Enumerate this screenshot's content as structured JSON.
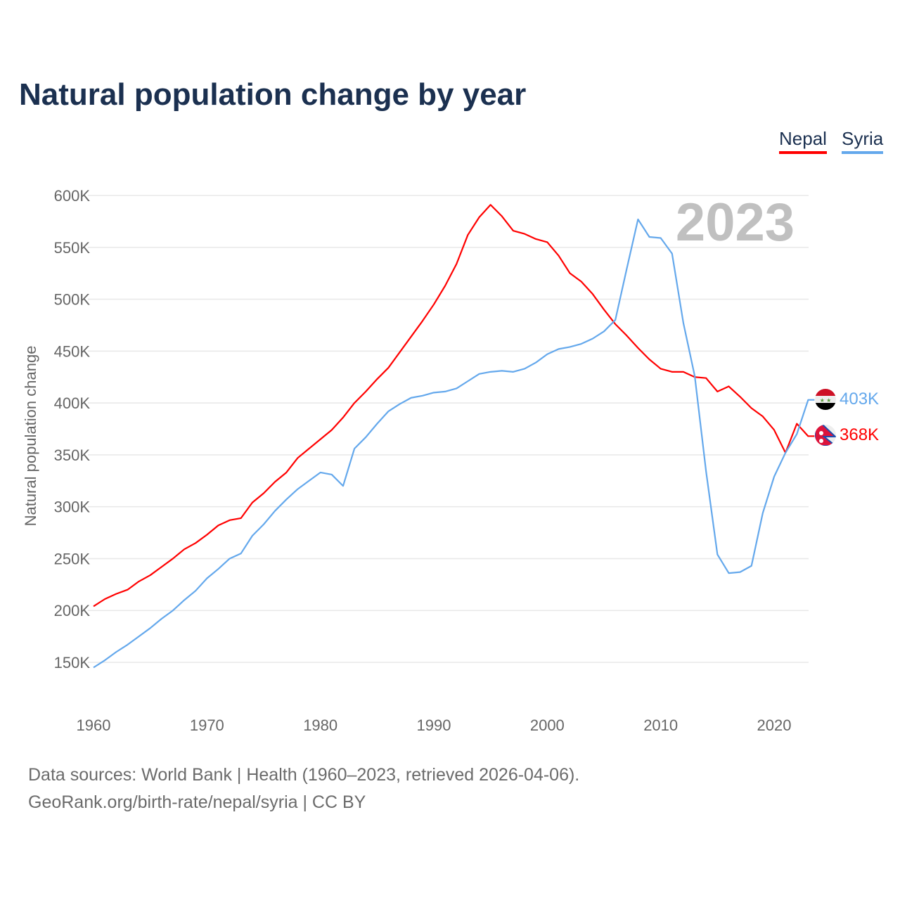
{
  "title": "Natural population change by year",
  "legend": [
    {
      "label": "Nepal",
      "color": "#ff0000"
    },
    {
      "label": "Syria",
      "color": "#64a8ec"
    }
  ],
  "year_watermark": "2023",
  "end_labels": {
    "nepal": "368K",
    "syria": "403K"
  },
  "flags": {
    "nepal": "nepal-flag-icon",
    "syria": "syria-flag-icon"
  },
  "source_lines": [
    "Data sources: World Bank | Health (1960–2023, retrieved 2026-04-06).",
    "GeoRank.org/birth-rate/nepal/syria | CC BY"
  ],
  "chart_data": {
    "type": "line",
    "title": "Natural population change by year",
    "xlabel": "",
    "ylabel": "Natural population change",
    "xlim": [
      1960,
      2023
    ],
    "ylim": [
      150000,
      600000
    ],
    "x_ticks": [
      1960,
      1970,
      1980,
      1990,
      2000,
      2010,
      2020
    ],
    "y_ticks": [
      150000,
      200000,
      250000,
      300000,
      350000,
      400000,
      450000,
      500000,
      550000,
      600000
    ],
    "y_tick_labels": [
      "150K",
      "200K",
      "250K",
      "300K",
      "350K",
      "400K",
      "450K",
      "500K",
      "550K",
      "600K"
    ],
    "grid": true,
    "legend_position": "top-right",
    "x_start": 1960,
    "series": [
      {
        "name": "Nepal",
        "color": "#ff0000",
        "values_k": [
          204,
          211,
          216,
          220,
          228,
          234,
          242,
          250,
          259,
          265,
          273,
          282,
          287,
          289,
          304,
          313,
          324,
          333,
          347,
          356,
          365,
          374,
          386,
          400,
          411,
          423,
          434,
          449,
          464,
          479,
          495,
          513,
          534,
          562,
          579,
          591,
          580,
          566,
          563,
          558,
          555,
          542,
          525,
          517,
          505,
          490,
          476,
          465,
          453,
          442,
          433,
          430,
          430,
          425,
          424,
          411,
          416,
          406,
          395,
          387,
          374,
          352,
          380,
          368
        ]
      },
      {
        "name": "Syria",
        "color": "#64a8ec",
        "values_k": [
          145,
          152,
          160,
          167,
          175,
          183,
          192,
          200,
          210,
          219,
          231,
          240,
          250,
          255,
          272,
          283,
          296,
          307,
          317,
          325,
          333,
          331,
          320,
          356,
          367,
          380,
          392,
          399,
          405,
          407,
          410,
          411,
          414,
          421,
          428,
          430,
          431,
          430,
          433,
          439,
          447,
          452,
          454,
          457,
          462,
          469,
          480,
          529,
          577,
          560,
          559,
          544,
          477,
          426,
          334,
          254,
          236,
          237,
          243,
          294,
          329,
          352,
          370,
          403
        ]
      }
    ]
  }
}
